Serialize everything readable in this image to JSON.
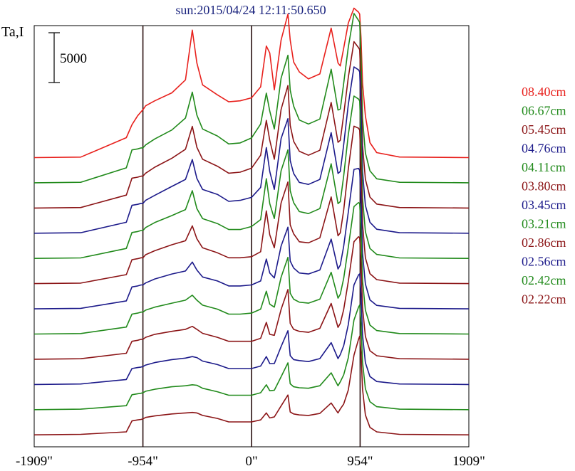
{
  "chart_data": {
    "type": "line",
    "title": "sun:2015/04/24 12:11:50.650",
    "ylabel": "Ta,I",
    "scale_bar_label": "5000",
    "scale_bar_value": 5000,
    "xlim": [
      -1909,
      1909
    ],
    "x_ticks": [
      -1909,
      -954,
      0,
      954,
      1909
    ],
    "x_tick_labels": [
      "-1909\"",
      "-954\"",
      "0\"",
      "954\"",
      "1909\""
    ],
    "vertical_markers": [
      -954,
      0,
      954
    ],
    "grid": false,
    "legend_position": "right",
    "profile_x": [
      -1909,
      -1500,
      -1100,
      -1050,
      -1000,
      -970,
      -954,
      -930,
      -850,
      -700,
      -580,
      -520,
      -480,
      -430,
      -300,
      -200,
      -100,
      0,
      80,
      130,
      160,
      200,
      260,
      320,
      340,
      370,
      420,
      500,
      600,
      700,
      760,
      780,
      810,
      850,
      900,
      940,
      950,
      962,
      975,
      1000,
      1040,
      1100,
      1300,
      1909
    ],
    "series": [
      {
        "name": "08.40cm",
        "color": "#e8201c",
        "baseline": 0,
        "values": [
          0,
          50,
          2000,
          3300,
          4200,
          4600,
          4800,
          5200,
          5700,
          6500,
          7800,
          12800,
          9500,
          7300,
          6300,
          5600,
          5700,
          6000,
          7100,
          11200,
          10500,
          6800,
          11800,
          14400,
          11800,
          9600,
          8600,
          7900,
          8400,
          13000,
          9500,
          9200,
          11000,
          13500,
          15000,
          14600,
          14400,
          12000,
          7500,
          4200,
          1500,
          500,
          60,
          0
        ]
      },
      {
        "name": "06.67cm",
        "color": "#218a1b",
        "baseline": 5,
        "values": [
          0,
          50,
          1500,
          3300,
          3400,
          3500,
          3500,
          3800,
          4400,
          5300,
          6500,
          9100,
          6800,
          5400,
          4700,
          3900,
          4000,
          4500,
          5900,
          9000,
          7200,
          5400,
          10500,
          12800,
          9300,
          7700,
          6300,
          5900,
          6400,
          11400,
          7300,
          7400,
          10000,
          13600,
          17000,
          16300,
          16100,
          12500,
          6500,
          3000,
          1200,
          400,
          50,
          0
        ]
      },
      {
        "name": "05.45cm",
        "color": "#8b1416",
        "baseline": 10,
        "values": [
          0,
          50,
          1300,
          3000,
          3100,
          3200,
          3200,
          3500,
          4100,
          5000,
          5900,
          8200,
          6100,
          4900,
          4200,
          3500,
          3600,
          4000,
          5300,
          8800,
          6800,
          4900,
          9900,
          12300,
          8300,
          6700,
          5700,
          5300,
          5800,
          10600,
          6600,
          6800,
          9400,
          13100,
          16700,
          16100,
          15900,
          12200,
          6300,
          2900,
          1100,
          400,
          50,
          0
        ]
      },
      {
        "name": "04.76cm",
        "color": "#1c1a8a",
        "baseline": 15,
        "values": [
          0,
          50,
          1100,
          2800,
          2900,
          3000,
          3000,
          3300,
          3800,
          4700,
          5400,
          7400,
          5500,
          4400,
          3900,
          3200,
          3300,
          3600,
          4600,
          8600,
          6200,
          4400,
          9500,
          11500,
          7300,
          6000,
          5100,
          4900,
          5400,
          10100,
          6000,
          6200,
          8900,
          12900,
          16700,
          16400,
          16200,
          12300,
          6200,
          2800,
          1100,
          400,
          50,
          0
        ]
      },
      {
        "name": "04.11cm",
        "color": "#218a1b",
        "baseline": 20,
        "values": [
          0,
          50,
          1000,
          2600,
          2700,
          2800,
          2800,
          3100,
          3600,
          4300,
          4900,
          6800,
          5000,
          4000,
          3500,
          2900,
          2900,
          3200,
          3900,
          8000,
          5500,
          4000,
          8800,
          10900,
          6800,
          5600,
          4700,
          4500,
          5000,
          9500,
          5500,
          5700,
          8300,
          12400,
          16300,
          16000,
          15800,
          12100,
          6100,
          2700,
          1000,
          400,
          50,
          0
        ]
      },
      {
        "name": "03.80cm",
        "color": "#8b1416",
        "baseline": 25,
        "values": [
          0,
          50,
          900,
          2400,
          2500,
          2600,
          2600,
          2900,
          3300,
          3900,
          4300,
          5800,
          4500,
          3600,
          3100,
          2600,
          2600,
          2700,
          3200,
          7300,
          4900,
          3600,
          8100,
          10200,
          5900,
          5000,
          4200,
          4100,
          4600,
          8700,
          4800,
          5100,
          7400,
          11500,
          15800,
          15600,
          15400,
          11800,
          6000,
          2600,
          1000,
          400,
          50,
          0
        ]
      },
      {
        "name": "03.45cm",
        "color": "#1c1a8a",
        "baseline": 30,
        "values": [
          0,
          50,
          800,
          2200,
          2300,
          2400,
          2400,
          2600,
          3000,
          3500,
          3800,
          4700,
          3900,
          3200,
          2800,
          2300,
          2300,
          2400,
          2800,
          5000,
          3600,
          3100,
          6300,
          8200,
          4800,
          4100,
          3600,
          3500,
          3900,
          7000,
          4000,
          4400,
          6300,
          9700,
          14000,
          14100,
          13900,
          10900,
          5600,
          2500,
          900,
          350,
          50,
          0
        ]
      },
      {
        "name": "03.21cm",
        "color": "#218a1b",
        "baseline": 35,
        "values": [
          0,
          50,
          700,
          2000,
          2100,
          2200,
          2200,
          2400,
          2700,
          3100,
          3400,
          3900,
          3400,
          2900,
          2500,
          2000,
          2000,
          2100,
          2500,
          4300,
          3000,
          2700,
          5700,
          7700,
          4100,
          3500,
          3200,
          3100,
          3500,
          6200,
          3600,
          4000,
          5600,
          8700,
          12800,
          13200,
          13100,
          10300,
          5400,
          2400,
          900,
          350,
          50,
          0
        ]
      },
      {
        "name": "02.86cm",
        "color": "#8b1416",
        "baseline": 40,
        "values": [
          0,
          50,
          600,
          1800,
          1900,
          2000,
          2000,
          2200,
          2500,
          2800,
          3000,
          3300,
          3000,
          2600,
          2200,
          1800,
          1800,
          1800,
          2100,
          3700,
          2500,
          2400,
          5000,
          7000,
          3600,
          3000,
          2800,
          2700,
          3100,
          5600,
          3200,
          3600,
          5000,
          7800,
          11800,
          12300,
          12200,
          9700,
          5200,
          2300,
          850,
          350,
          50,
          0
        ]
      },
      {
        "name": "02.56cm",
        "color": "#1c1a8a",
        "baseline": 45,
        "values": [
          0,
          50,
          500,
          1600,
          1700,
          1750,
          1800,
          1950,
          2200,
          2500,
          2650,
          2800,
          2700,
          2350,
          2000,
          1600,
          1600,
          1600,
          1850,
          2800,
          2100,
          2100,
          3800,
          5400,
          2900,
          2500,
          2400,
          2300,
          2600,
          4200,
          2600,
          3000,
          3900,
          6000,
          10000,
          11000,
          11100,
          9100,
          5000,
          2200,
          800,
          300,
          50,
          0
        ]
      },
      {
        "name": "02.42cm",
        "color": "#218a1b",
        "baseline": 50,
        "values": [
          0,
          50,
          400,
          1500,
          1600,
          1650,
          1700,
          1850,
          2050,
          2300,
          2400,
          2500,
          2450,
          2150,
          1800,
          1450,
          1450,
          1450,
          1700,
          2500,
          1900,
          1950,
          3300,
          4700,
          2600,
          2300,
          2200,
          2150,
          2400,
          3700,
          2400,
          2800,
          3500,
          5200,
          9000,
          10300,
          10500,
          8700,
          4800,
          2100,
          800,
          300,
          50,
          0
        ]
      },
      {
        "name": "02.22cm",
        "color": "#8b1416",
        "baseline": 55,
        "values": [
          0,
          50,
          300,
          1400,
          1500,
          1550,
          1600,
          1750,
          1900,
          2100,
          2200,
          2250,
          2200,
          1950,
          1650,
          1300,
          1300,
          1300,
          1500,
          2200,
          1700,
          1800,
          2900,
          4000,
          2300,
          2100,
          2000,
          1950,
          2150,
          3200,
          2200,
          2600,
          3100,
          4500,
          8000,
          9600,
          9900,
          8300,
          4600,
          2000,
          750,
          300,
          50,
          0
        ]
      }
    ]
  }
}
